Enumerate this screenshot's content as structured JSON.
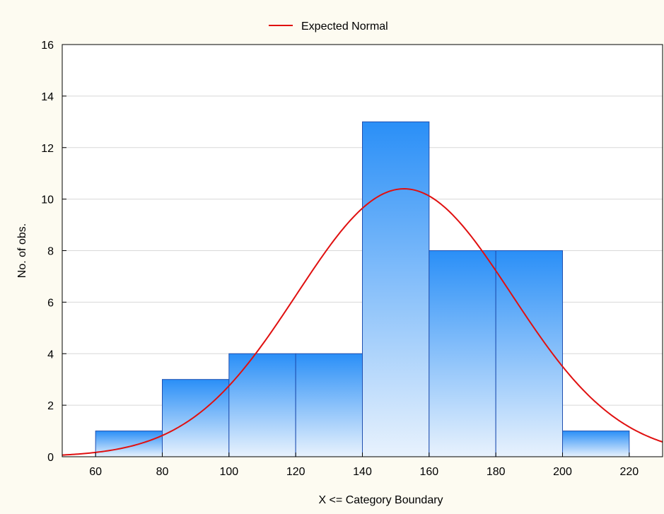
{
  "chart_data": {
    "type": "bar",
    "subtype": "histogram",
    "bins": [
      {
        "from": 60,
        "to": 80,
        "count": 1
      },
      {
        "from": 80,
        "to": 100,
        "count": 3
      },
      {
        "from": 100,
        "to": 120,
        "count": 4
      },
      {
        "from": 120,
        "to": 140,
        "count": 4
      },
      {
        "from": 140,
        "to": 160,
        "count": 13
      },
      {
        "from": 160,
        "to": 180,
        "count": 8
      },
      {
        "from": 180,
        "to": 200,
        "count": 8
      },
      {
        "from": 200,
        "to": 220,
        "count": 1
      }
    ],
    "curve": {
      "name": "Expected Normal",
      "color": "#e01010",
      "mean": 152.5,
      "sd": 32.2,
      "peak": 10.4
    },
    "xlabel": "X <= Category Boundary",
    "ylabel": "No. of obs.",
    "xlim": [
      50,
      230
    ],
    "ylim": [
      0,
      16
    ],
    "xticks": [
      60,
      80,
      100,
      120,
      140,
      160,
      180,
      200,
      220
    ],
    "yticks": [
      0,
      2,
      4,
      6,
      8,
      10,
      12,
      14,
      16
    ],
    "grid": true,
    "legend": "top-center",
    "colors": {
      "background": "#fdfbf1",
      "plot_background": "#ffffff",
      "bar_top": "#2a8ff7",
      "bar_bottom": "#e8f2fd",
      "bar_border": "#1f4fb0",
      "grid": "#d8d8d8"
    }
  }
}
